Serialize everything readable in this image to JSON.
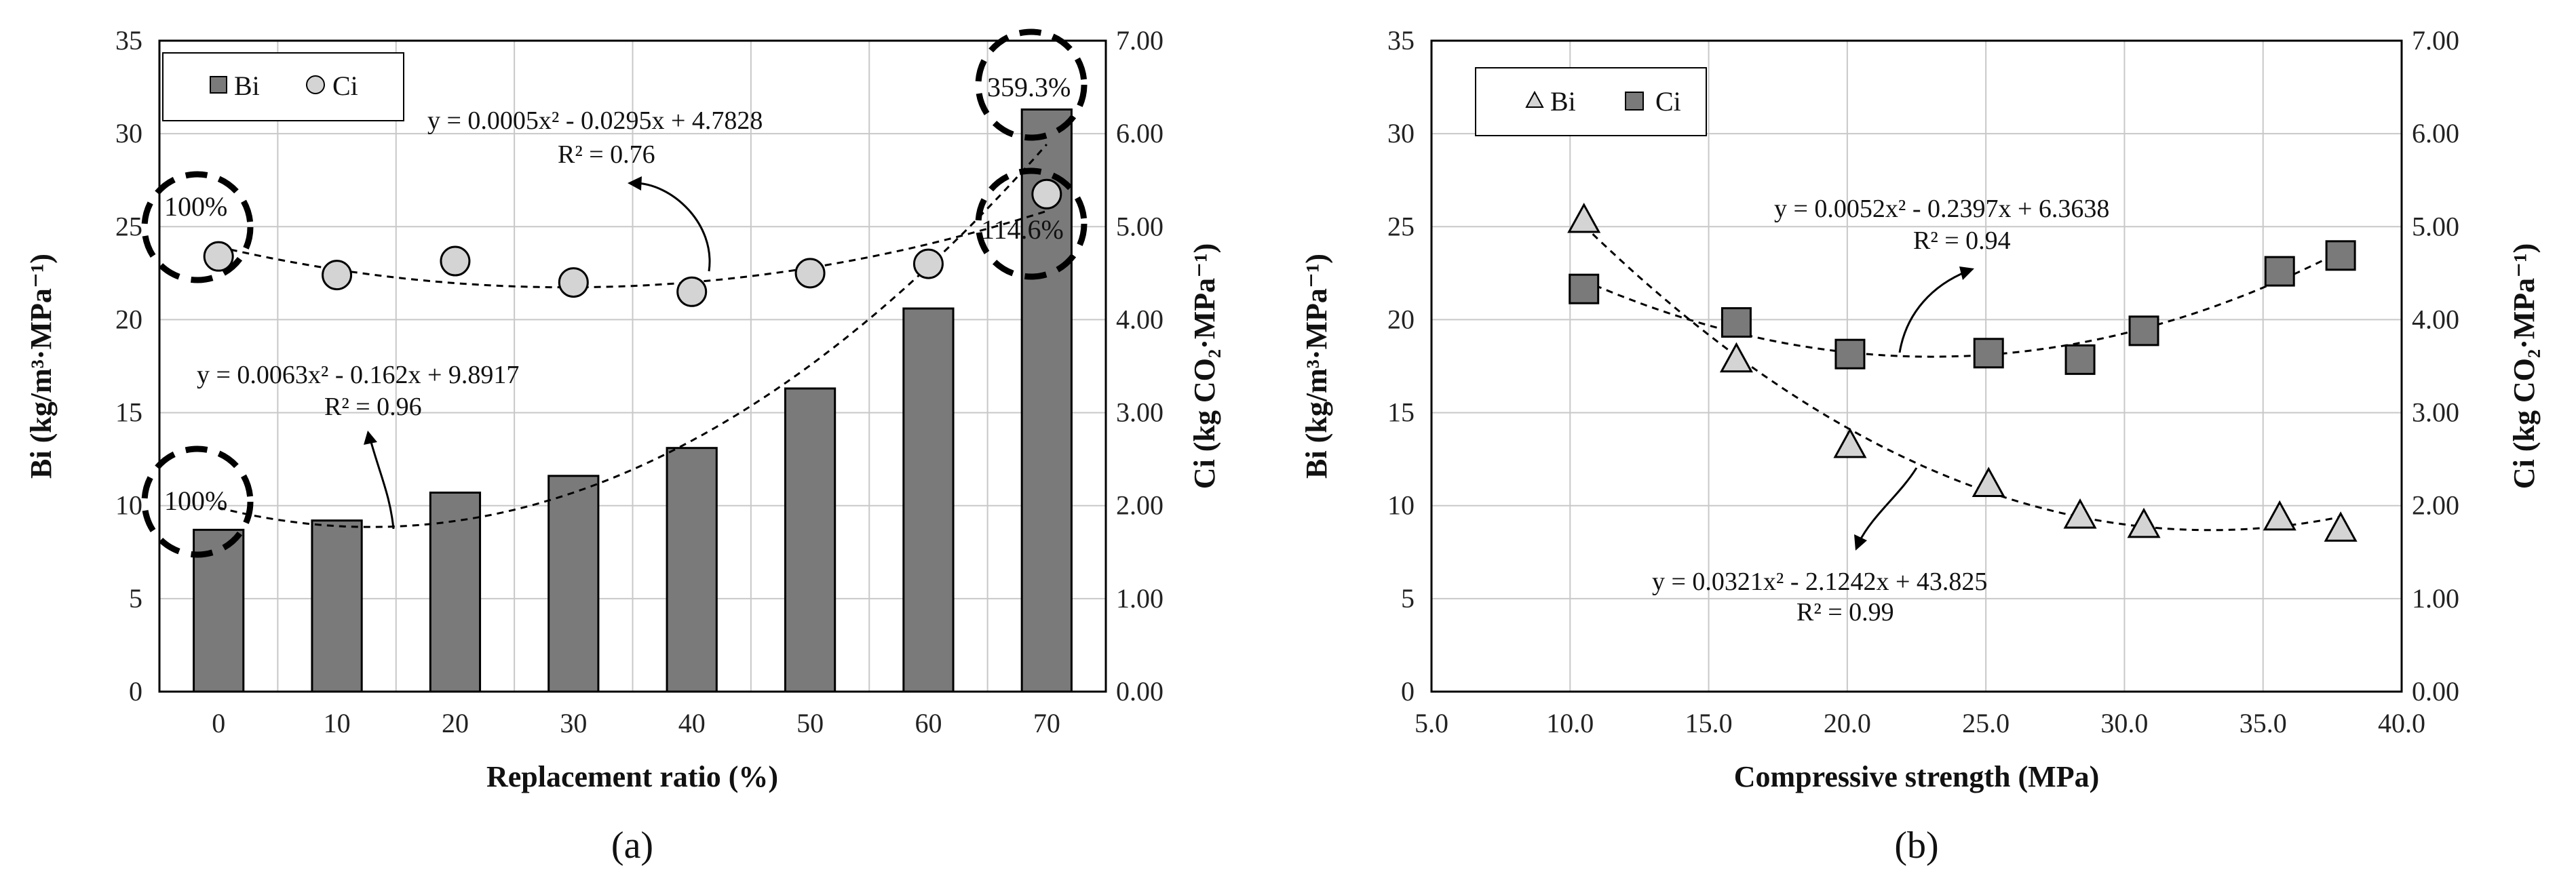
{
  "chart_data": [
    {
      "type": "bar",
      "panel_label": "(a)",
      "xlabel": "Replacement ratio (%)",
      "ylabel": "Bi (kg/m³·MPa⁻¹)",
      "ylabel_right": "Ci (kg CO₂·MPa⁻¹)",
      "categories": [
        "0",
        "10",
        "20",
        "30",
        "40",
        "50",
        "60",
        "70"
      ],
      "ylim": [
        0,
        35
      ],
      "yticks": [
        "0",
        "5",
        "10",
        "15",
        "20",
        "25",
        "30",
        "35"
      ],
      "ylim_right": [
        0,
        7
      ],
      "yticks_right": [
        "0.00",
        "1.00",
        "2.00",
        "3.00",
        "4.00",
        "5.00",
        "6.00",
        "7.00"
      ],
      "series": [
        {
          "name": "Bi",
          "kind": "bar",
          "axis": "left",
          "values": [
            8.7,
            9.2,
            10.7,
            11.6,
            13.1,
            16.3,
            20.6,
            31.3
          ]
        },
        {
          "name": "Ci",
          "kind": "marker",
          "axis": "right",
          "values": [
            4.68,
            4.48,
            4.63,
            4.4,
            4.3,
            4.5,
            4.6,
            5.35
          ]
        }
      ],
      "legend": [
        "Bi",
        "Ci"
      ],
      "legend_position": "top-left",
      "grid": true,
      "trendlines": [
        {
          "series": "Bi",
          "equation": "y = 0.0063x² - 0.162x + 9.8917",
          "r2": "R² = 0.96"
        },
        {
          "series": "Ci",
          "equation": "y = 0.0005x² - 0.0295x + 4.7828",
          "r2": "R² = 0.76"
        }
      ],
      "annotations": [
        "100%",
        "100%",
        "359.3%",
        "114.6%"
      ]
    },
    {
      "type": "scatter",
      "panel_label": "(b)",
      "xlabel": "Compressive strength (MPa)",
      "ylabel": "Bi (kg/m³·MPa⁻¹)",
      "ylabel_right": "Ci (kg CO₂·MPa⁻¹)",
      "xlim": [
        5,
        40
      ],
      "xticks": [
        "5.0",
        "10.0",
        "15.0",
        "20.0",
        "25.0",
        "30.0",
        "35.0",
        "40.0"
      ],
      "ylim": [
        0,
        35
      ],
      "yticks": [
        "0",
        "5",
        "10",
        "15",
        "20",
        "25",
        "30",
        "35"
      ],
      "ylim_right": [
        0,
        7
      ],
      "yticks_right": [
        "0.00",
        "1.00",
        "2.00",
        "3.00",
        "4.00",
        "5.00",
        "6.00",
        "7.00"
      ],
      "series": [
        {
          "name": "Bi",
          "marker": "triangle",
          "axis": "left",
          "x": [
            10.5,
            16.0,
            20.1,
            25.1,
            28.4,
            30.7,
            35.6,
            37.8
          ],
          "y": [
            25.3,
            17.8,
            13.2,
            11.1,
            9.4,
            8.9,
            9.3,
            8.7
          ]
        },
        {
          "name": "Ci",
          "marker": "square",
          "axis": "right",
          "x": [
            10.5,
            16.0,
            20.1,
            25.1,
            28.4,
            30.7,
            35.6,
            37.8
          ],
          "y": [
            4.33,
            3.97,
            3.63,
            3.64,
            3.57,
            3.88,
            4.52,
            4.69
          ]
        }
      ],
      "legend": [
        "Bi",
        "Ci"
      ],
      "legend_position": "top-left",
      "grid": true,
      "trendlines": [
        {
          "series": "Ci",
          "equation": "y = 0.0052x² - 0.2397x + 6.3638",
          "r2": "R² = 0.94"
        },
        {
          "series": "Bi",
          "equation": "y = 0.0321x² - 2.1242x + 43.825",
          "r2": "R² = 0.99"
        }
      ]
    }
  ]
}
